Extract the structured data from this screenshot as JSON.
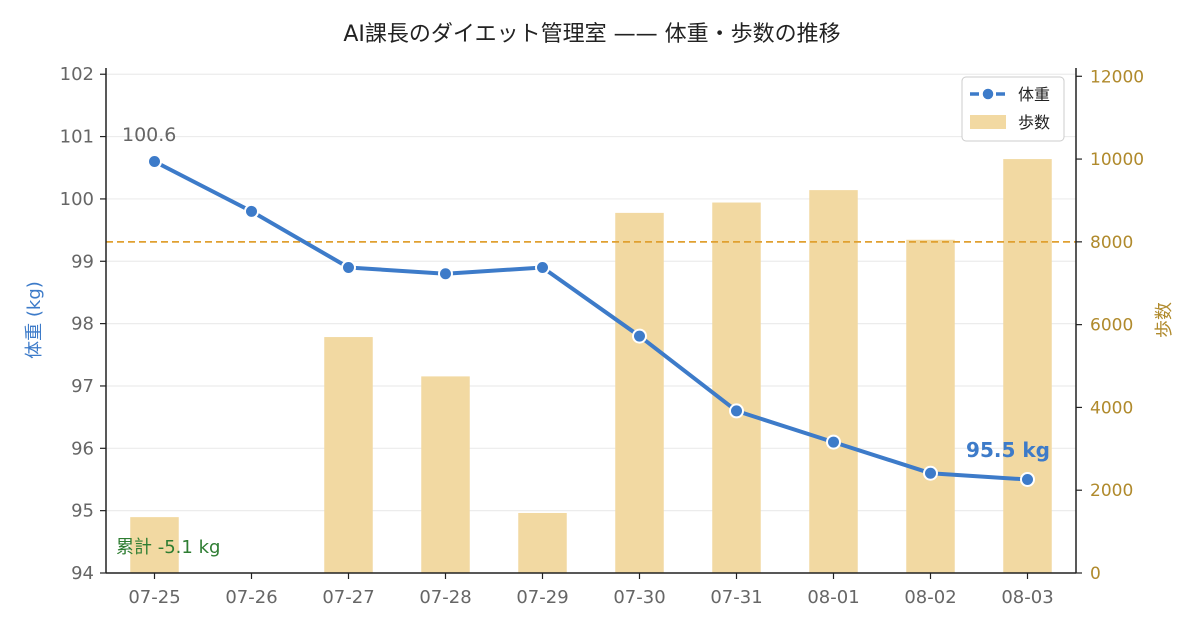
{
  "chart_data": {
    "type": "bar+line",
    "title": "AI課長のダイエット管理室 —— 体重・歩数の推移",
    "categories": [
      "07-25",
      "07-26",
      "07-27",
      "07-28",
      "07-29",
      "07-30",
      "07-31",
      "08-01",
      "08-02",
      "08-03"
    ],
    "series": [
      {
        "name": "体重",
        "type": "line",
        "axis": "left",
        "values": [
          100.6,
          99.8,
          98.9,
          98.8,
          98.9,
          97.8,
          96.6,
          96.1,
          95.6,
          95.5
        ]
      },
      {
        "name": "歩数",
        "type": "bar",
        "axis": "right",
        "values": [
          1350,
          0,
          5700,
          4750,
          1450,
          8700,
          8950,
          9250,
          8050,
          10000
        ]
      }
    ],
    "ylabel_left": "体重 (kg)",
    "ylabel_right": "歩数",
    "ylim_left": [
      94,
      102.1
    ],
    "ylim_right": [
      0,
      12200
    ],
    "yticks_left": [
      94,
      95,
      96,
      97,
      98,
      99,
      100,
      101,
      102
    ],
    "yticks_right": [
      0,
      2000,
      4000,
      6000,
      8000,
      10000,
      12000
    ],
    "reference_line": {
      "axis": "right",
      "value": 8000
    },
    "annotations": {
      "start": "100.6",
      "end": "95.5 kg",
      "total": "累計 -5.1 kg"
    },
    "legend": {
      "placement": "top-right",
      "items": [
        "体重",
        "歩数"
      ]
    },
    "colors": {
      "weight": "#3d7bc9",
      "steps": "#f2d9a2",
      "reference": "#e0a030",
      "right_axis": "#b08a2c",
      "total": "#2e7d32"
    },
    "grid": true
  }
}
